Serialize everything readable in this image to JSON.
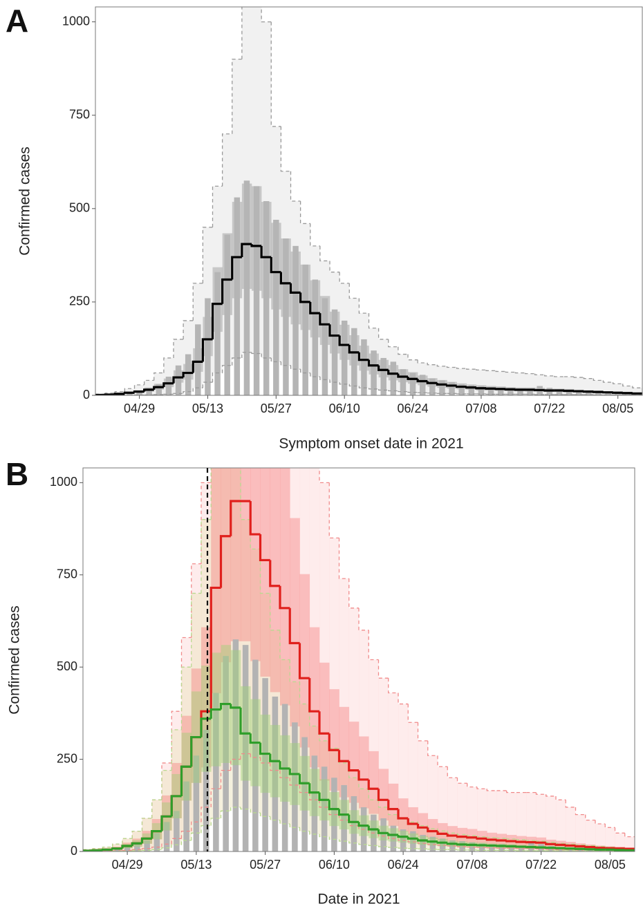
{
  "chart_data": [
    {
      "type": "step",
      "panel_label": "A",
      "ylabel": "Confirmed cases",
      "xlabel": "Symptom onset date in 2021",
      "x": [
        "04/21",
        "04/23",
        "04/25",
        "04/27",
        "04/29",
        "05/01",
        "05/03",
        "05/05",
        "05/07",
        "05/09",
        "05/11",
        "05/13",
        "05/15",
        "05/17",
        "05/19",
        "05/21",
        "05/23",
        "05/25",
        "05/27",
        "05/29",
        "05/31",
        "06/02",
        "06/04",
        "06/06",
        "06/08",
        "06/10",
        "06/12",
        "06/14",
        "06/16",
        "06/18",
        "06/20",
        "06/22",
        "06/24",
        "06/26",
        "06/28",
        "06/30",
        "07/02",
        "07/04",
        "07/06",
        "07/08",
        "07/10",
        "07/12",
        "07/14",
        "07/16",
        "07/18",
        "07/20",
        "07/22",
        "07/24",
        "07/26",
        "07/28",
        "07/30",
        "08/01",
        "08/03",
        "08/05",
        "08/07",
        "08/09"
      ],
      "xticks": [
        "04/29",
        "05/13",
        "05/27",
        "06/10",
        "06/24",
        "07/08",
        "07/22",
        "08/05"
      ],
      "ylim": [
        0,
        1040
      ],
      "yticks": [
        0,
        250,
        500,
        750,
        1000
      ],
      "grid": false,
      "bands": [
        {
          "color": "#f1f1f1",
          "edge_color": "#999999",
          "dashed": true,
          "low": [
            0,
            0,
            0,
            0,
            1,
            1,
            2,
            3,
            5,
            10,
            20,
            35,
            60,
            80,
            100,
            115,
            112,
            100,
            90,
            80,
            70,
            60,
            50,
            42,
            35,
            30,
            25,
            20,
            17,
            14,
            12,
            10,
            8,
            7,
            6,
            5,
            5,
            4,
            4,
            4,
            3,
            3,
            3,
            3,
            3,
            2,
            2,
            2,
            2,
            2,
            2,
            1,
            1,
            1,
            1,
            1
          ],
          "high": [
            3,
            6,
            10,
            18,
            28,
            40,
            60,
            100,
            150,
            200,
            300,
            450,
            560,
            700,
            900,
            1100,
            1100,
            1000,
            720,
            600,
            520,
            460,
            400,
            360,
            330,
            300,
            260,
            220,
            180,
            150,
            130,
            110,
            95,
            87,
            82,
            78,
            75,
            72,
            70,
            68,
            66,
            64,
            62,
            60,
            58,
            55,
            52,
            50,
            50,
            48,
            45,
            40,
            35,
            31,
            25,
            20
          ]
        },
        {
          "color": "rgba(150,150,150,0.45)",
          "edge_color": "none",
          "dashed": false,
          "low": [
            1,
            1,
            3,
            5,
            7,
            10,
            15,
            22,
            34,
            42,
            63,
            105,
            170,
            215,
            260,
            285,
            280,
            260,
            230,
            210,
            190,
            175,
            155,
            135,
            112,
            95,
            80,
            66,
            56,
            48,
            40,
            35,
            31,
            27,
            23,
            20,
            18,
            16,
            15,
            13,
            13,
            12,
            11,
            11,
            10,
            10,
            9,
            9,
            8,
            8,
            7,
            6,
            6,
            5,
            4,
            3
          ],
          "high": [
            2,
            3,
            6,
            10,
            14,
            21,
            31,
            45,
            67,
            84,
            126,
            210,
            343,
            434,
            518,
            567,
            560,
            518,
            462,
            420,
            385,
            350,
            308,
            266,
            224,
            189,
            161,
            133,
            112,
            95,
            81,
            70,
            62,
            53,
            46,
            41,
            36,
            32,
            29,
            27,
            25,
            24,
            22,
            21,
            21,
            20,
            18,
            18,
            17,
            15,
            14,
            13,
            11,
            10,
            8,
            7
          ]
        }
      ],
      "bars": {
        "color": "#b5b5b5",
        "values": [
          2,
          3,
          5,
          8,
          12,
          20,
          30,
          50,
          80,
          110,
          190,
          260,
          330,
          430,
          530,
          575,
          560,
          520,
          470,
          420,
          400,
          350,
          310,
          260,
          230,
          200,
          180,
          150,
          120,
          100,
          90,
          70,
          60,
          55,
          45,
          40,
          35,
          30,
          28,
          25,
          22,
          20,
          20,
          18,
          15,
          25,
          20,
          15,
          12,
          10,
          10,
          8,
          6,
          5,
          4,
          3
        ]
      },
      "lines": [
        {
          "color": "#000000",
          "width": 3.2,
          "values": [
            1,
            2,
            4,
            7,
            10,
            15,
            22,
            32,
            48,
            60,
            90,
            150,
            245,
            310,
            370,
            405,
            400,
            370,
            330,
            300,
            275,
            250,
            220,
            190,
            160,
            135,
            115,
            95,
            80,
            68,
            58,
            50,
            44,
            38,
            33,
            29,
            26,
            23,
            21,
            19,
            18,
            17,
            16,
            15,
            15,
            14,
            13,
            13,
            12,
            11,
            10,
            9,
            8,
            7,
            6,
            5
          ]
        }
      ]
    },
    {
      "type": "step",
      "panel_label": "B",
      "ylabel": "Confirmed cases",
      "xlabel": "Date in 2021",
      "x": [
        "04/21",
        "04/23",
        "04/25",
        "04/27",
        "04/29",
        "05/01",
        "05/03",
        "05/05",
        "05/07",
        "05/09",
        "05/11",
        "05/13",
        "05/15",
        "05/17",
        "05/19",
        "05/21",
        "05/23",
        "05/25",
        "05/27",
        "05/29",
        "05/31",
        "06/02",
        "06/04",
        "06/06",
        "06/08",
        "06/10",
        "06/12",
        "06/14",
        "06/16",
        "06/18",
        "06/20",
        "06/22",
        "06/24",
        "06/26",
        "06/28",
        "06/30",
        "07/02",
        "07/04",
        "07/06",
        "07/08",
        "07/10",
        "07/12",
        "07/14",
        "07/16",
        "07/18",
        "07/20",
        "07/22",
        "07/24",
        "07/26",
        "07/28",
        "07/30",
        "08/01",
        "08/03",
        "08/05",
        "08/07",
        "08/09"
      ],
      "xticks": [
        "04/29",
        "05/13",
        "05/27",
        "06/10",
        "06/24",
        "07/08",
        "07/22",
        "08/05"
      ],
      "ylim": [
        0,
        1040
      ],
      "yticks": [
        0,
        250,
        500,
        750,
        1000
      ],
      "grid": false,
      "bands": [
        {
          "color": "rgba(252,200,200,0.35)",
          "edge_color": "#f08a8a",
          "dashed": true,
          "low": [
            0,
            0,
            1,
            2,
            3,
            5,
            8,
            12,
            20,
            35,
            55,
            80,
            120,
            170,
            220,
            250,
            265,
            255,
            240,
            220,
            200,
            180,
            160,
            140,
            120,
            100,
            85,
            70,
            60,
            50,
            42,
            35,
            30,
            26,
            22,
            19,
            17,
            15,
            13,
            12,
            11,
            10,
            9,
            9,
            8,
            8,
            7,
            6,
            5,
            5,
            4,
            4,
            3,
            3,
            2,
            2
          ],
          "high": [
            5,
            8,
            12,
            20,
            35,
            55,
            90,
            140,
            240,
            380,
            580,
            780,
            1000,
            1600,
            1900,
            2100,
            2100,
            2000,
            1900,
            1800,
            1700,
            1500,
            1300,
            1150,
            1000,
            850,
            740,
            660,
            600,
            520,
            470,
            430,
            400,
            350,
            300,
            260,
            230,
            200,
            185,
            175,
            170,
            165,
            165,
            160,
            160,
            160,
            155,
            150,
            140,
            120,
            100,
            85,
            75,
            65,
            50,
            40
          ]
        },
        {
          "color": "rgba(236,230,196,0.55)",
          "edge_color": "#b9d98f",
          "dashed": true,
          "low": [
            0,
            0,
            0,
            1,
            1,
            2,
            3,
            5,
            10,
            18,
            30,
            50,
            70,
            90,
            110,
            120,
            115,
            105,
            95,
            85,
            75,
            65,
            55,
            47,
            40,
            33,
            28,
            23,
            19,
            16,
            13,
            11,
            9,
            8,
            7,
            6,
            5,
            5,
            4,
            4,
            3,
            3,
            3,
            3,
            2,
            2,
            2,
            2,
            2,
            2,
            1,
            1,
            1,
            1,
            1,
            1
          ],
          "high": [
            5,
            8,
            12,
            20,
            35,
            55,
            90,
            140,
            220,
            330,
            500,
            700,
            900,
            1100,
            1100,
            1050,
            900,
            820,
            700,
            600,
            520,
            460,
            400,
            340,
            300,
            280,
            240,
            200,
            170,
            140,
            120,
            100,
            90,
            80,
            70,
            62,
            56,
            50,
            46,
            43,
            40,
            38,
            36,
            34,
            32,
            30,
            28,
            25,
            22,
            20,
            18,
            16,
            14,
            12,
            10,
            8
          ]
        },
        {
          "color": "rgba(244,120,120,0.4)",
          "edge_color": "none",
          "dashed": false,
          "low": [
            1,
            2,
            3,
            5,
            9,
            13,
            21,
            33,
            57,
            90,
            138,
            186,
            228,
            429,
            513,
            570,
            570,
            516,
            474,
            432,
            396,
            339,
            282,
            228,
            192,
            165,
            147,
            132,
            117,
            102,
            84,
            69,
            54,
            45,
            39,
            33,
            29,
            26,
            24,
            23,
            21,
            19,
            18,
            17,
            16,
            15,
            14,
            12,
            11,
            10,
            8,
            7,
            6,
            5,
            5,
            4
          ],
          "high": [
            3,
            5,
            8,
            13,
            24,
            35,
            56,
            88,
            152,
            240,
            368,
            496,
            608,
            1144,
            1368,
            1520,
            1520,
            1376,
            1264,
            1152,
            1056,
            904,
            752,
            608,
            512,
            440,
            392,
            352,
            312,
            272,
            224,
            184,
            144,
            120,
            104,
            88,
            77,
            69,
            64,
            61,
            56,
            51,
            48,
            45,
            42,
            40,
            38,
            32,
            29,
            26,
            22,
            19,
            16,
            14,
            13,
            11
          ]
        }
      ],
      "bars": {
        "color": "#b3b3b3",
        "values": [
          2,
          3,
          5,
          8,
          12,
          20,
          30,
          50,
          80,
          110,
          190,
          260,
          330,
          430,
          530,
          575,
          560,
          520,
          470,
          420,
          400,
          350,
          310,
          260,
          230,
          200,
          180,
          150,
          120,
          100,
          90,
          70,
          60,
          55,
          45,
          40,
          35,
          30,
          28,
          25,
          22,
          20,
          20,
          18,
          15,
          25,
          20,
          15,
          12,
          10,
          10,
          8,
          6,
          5,
          4,
          3
        ]
      },
      "front_bands": [
        {
          "color": "rgba(160,210,120,0.45)",
          "edge_color": "none",
          "dashed": false,
          "low": [
            1,
            2,
            3,
            5,
            9,
            13,
            21,
            33,
            57,
            90,
            138,
            186,
            216,
            231,
            240,
            234,
            192,
            177,
            159,
            147,
            135,
            126,
            111,
            96,
            84,
            69,
            60,
            48,
            42,
            36,
            30,
            27,
            24,
            21,
            18,
            16,
            14,
            13,
            11,
            11,
            10,
            10,
            9,
            8,
            8,
            7,
            7,
            6,
            5,
            5,
            4,
            4,
            3,
            3,
            2,
            2
          ],
          "high": [
            3,
            4,
            7,
            11,
            21,
            31,
            49,
            77,
            133,
            210,
            322,
            434,
            504,
            539,
            560,
            546,
            448,
            413,
            371,
            343,
            315,
            294,
            259,
            224,
            196,
            161,
            140,
            112,
            98,
            84,
            70,
            63,
            56,
            49,
            42,
            38,
            34,
            29,
            27,
            25,
            24,
            22,
            21,
            20,
            18,
            17,
            15,
            14,
            13,
            11,
            10,
            8,
            7,
            7,
            6,
            4
          ]
        }
      ],
      "lines": [
        {
          "color": "#e0201c",
          "width": 3.2,
          "values": [
            2,
            3,
            5,
            8,
            15,
            22,
            35,
            55,
            95,
            150,
            230,
            310,
            380,
            715,
            855,
            950,
            950,
            860,
            790,
            720,
            660,
            565,
            470,
            380,
            320,
            275,
            245,
            220,
            195,
            170,
            140,
            115,
            90,
            75,
            65,
            55,
            48,
            43,
            40,
            38,
            35,
            32,
            30,
            28,
            26,
            25,
            24,
            20,
            18,
            16,
            14,
            12,
            10,
            9,
            8,
            7
          ]
        },
        {
          "color": "#2f9e2a",
          "width": 3.2,
          "values": [
            2,
            3,
            5,
            8,
            15,
            22,
            35,
            55,
            95,
            150,
            230,
            310,
            360,
            385,
            400,
            390,
            320,
            295,
            265,
            245,
            225,
            210,
            185,
            160,
            140,
            115,
            100,
            80,
            70,
            60,
            50,
            45,
            40,
            35,
            30,
            27,
            24,
            21,
            19,
            18,
            17,
            16,
            15,
            14,
            13,
            12,
            11,
            10,
            9,
            8,
            7,
            6,
            5,
            5,
            4,
            3
          ]
        }
      ]
    }
  ]
}
